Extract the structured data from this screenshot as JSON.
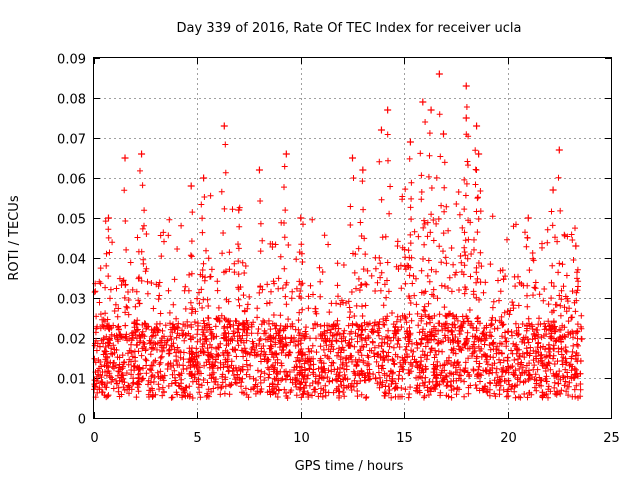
{
  "chart_data": {
    "type": "scatter",
    "title": "Day 339 of 2016, Rate Of TEC Index for receiver ucla",
    "xlabel": "GPS time / hours",
    "ylabel": "ROTI / TECUs",
    "xlim": [
      0,
      25
    ],
    "ylim": [
      0,
      0.09
    ],
    "xticks": [
      0,
      5,
      10,
      15,
      20,
      25
    ],
    "xtick_labels": [
      "0",
      "5",
      "10",
      "15",
      "20",
      "25"
    ],
    "yticks": [
      0,
      0.01,
      0.02,
      0.03,
      0.04,
      0.05,
      0.06,
      0.07,
      0.08,
      0.09
    ],
    "ytick_labels": [
      "0",
      "0.01",
      "0.02",
      "0.03",
      "0.04",
      "0.05",
      "0.06",
      "0.07",
      "0.08",
      "0.09"
    ],
    "grid": true,
    "marker": "+",
    "color": "#ff0000",
    "series": [
      {
        "name": "ROTI",
        "x_range": [
          0,
          23.6
        ],
        "baseline_range": [
          0.005,
          0.022
        ],
        "notable_points": [
          {
            "x": 16.7,
            "y": 0.086
          },
          {
            "x": 18.0,
            "y": 0.083
          },
          {
            "x": 18.0,
            "y": 0.075
          },
          {
            "x": 14.2,
            "y": 0.077
          },
          {
            "x": 13.9,
            "y": 0.072
          },
          {
            "x": 6.3,
            "y": 0.073
          },
          {
            "x": 15.9,
            "y": 0.079
          },
          {
            "x": 16.3,
            "y": 0.077
          },
          {
            "x": 18.5,
            "y": 0.073
          },
          {
            "x": 9.3,
            "y": 0.066
          },
          {
            "x": 2.3,
            "y": 0.066
          },
          {
            "x": 1.5,
            "y": 0.065
          },
          {
            "x": 22.5,
            "y": 0.067
          },
          {
            "x": 12.5,
            "y": 0.065
          },
          {
            "x": 15.3,
            "y": 0.069
          },
          {
            "x": 16.9,
            "y": 0.071
          },
          {
            "x": 18.6,
            "y": 0.066
          },
          {
            "x": 5.3,
            "y": 0.06
          },
          {
            "x": 8.0,
            "y": 0.062
          },
          {
            "x": 4.7,
            "y": 0.058
          },
          {
            "x": 0.7,
            "y": 0.05
          },
          {
            "x": 22.2,
            "y": 0.057
          },
          {
            "x": 13.0,
            "y": 0.062
          },
          {
            "x": 10.0,
            "y": 0.05
          },
          {
            "x": 23.3,
            "y": 0.043
          },
          {
            "x": 21.0,
            "y": 0.05
          },
          {
            "x": 7.0,
            "y": 0.052
          }
        ]
      }
    ]
  }
}
